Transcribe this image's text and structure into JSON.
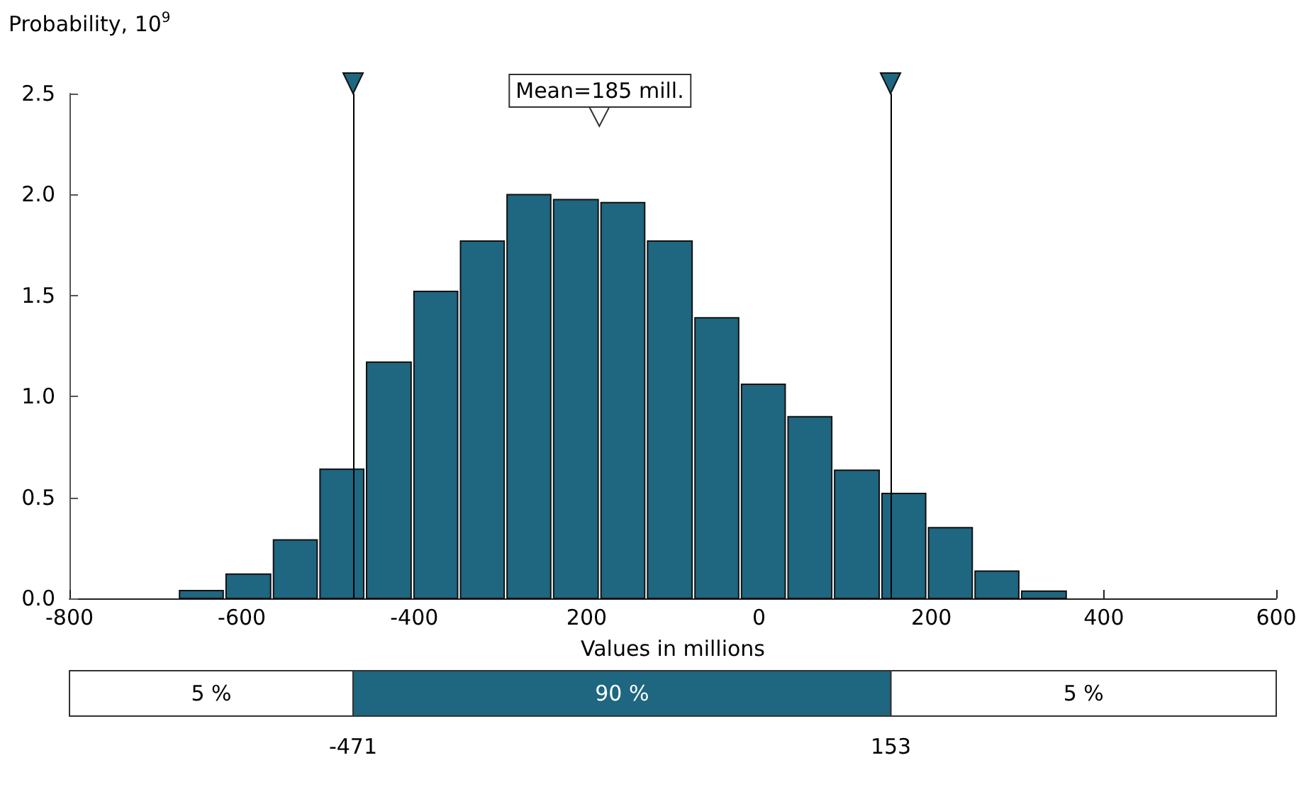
{
  "chart_data": [
    {
      "type": "histogram",
      "ylabel": "Probability, 10$^{9}$",
      "xlabel": "Values in millions",
      "bins": [
        -674,
        -620,
        -565,
        -511,
        -457,
        -402,
        -348,
        -294,
        -240,
        -185,
        -131,
        -76,
        -22,
        32,
        86,
        141,
        195,
        249,
        303,
        358
      ],
      "values": [
        0.039,
        0.12,
        0.29,
        0.64,
        1.17,
        1.52,
        1.77,
        2.0,
        1.975,
        1.96,
        1.77,
        1.39,
        1.06,
        0.9,
        0.635,
        0.52,
        0.35,
        0.135,
        0.036
      ],
      "color": "#1f6680",
      "xlim": [
        -800,
        600
      ],
      "xticks": [
        -800,
        -600,
        -400,
        {
          "value": -200,
          "label": "200"
        },
        0,
        200,
        400,
        600
      ],
      "ylim": [
        0,
        2.5
      ],
      "yticks": [
        {
          "value": 0,
          "label": "0.0"
        },
        0.5,
        {
          "value": 1,
          "label": "1.0"
        },
        1.5,
        {
          "value": 2,
          "label": "2.0"
        },
        2.5
      ],
      "ref_lines": [
        {
          "axis": "x",
          "value": -471
        },
        {
          "axis": "x",
          "value": 153
        }
      ],
      "annotations": [
        "Mean=185 mill."
      ]
    },
    {
      "type": "bar",
      "orientation": "horizontal",
      "annotations": [
        "5 %",
        "90 %",
        "5 %"
      ],
      "categories": [
        null
      ],
      "xlim": [
        -800,
        600
      ],
      "xticks": [
        -471,
        153
      ],
      "series": [
        {
          "color": "#ffffff",
          "base": [
            -800
          ],
          "values": [
            329
          ]
        },
        {
          "color": "#1f6680",
          "base": [
            -471
          ],
          "values": [
            624
          ]
        },
        {
          "color": "#ffffff",
          "base": [
            153
          ],
          "values": [
            447
          ]
        }
      ]
    }
  ]
}
